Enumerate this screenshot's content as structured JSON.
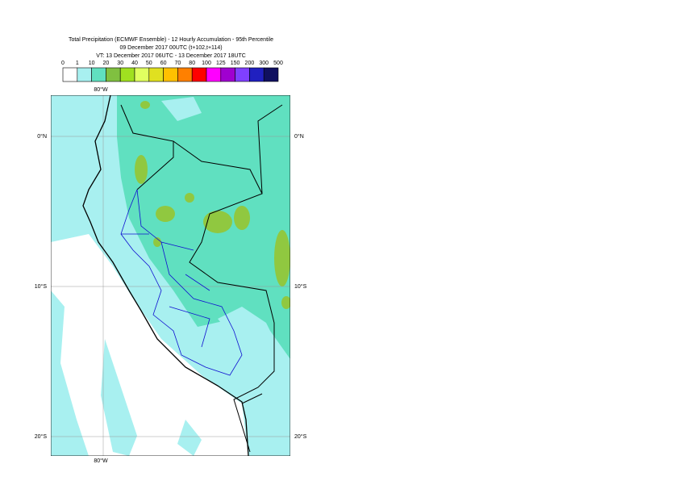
{
  "title": {
    "line1": "Total Precipitation (ECMWF Ensemble) - 12 Hourly Accumulation - 95th Percentile",
    "line2": "09 December 2017 00UTC (t+102,t+114)",
    "line3": "VT: 13 December 2017 06UTC - 13 December 2017 18UTC"
  },
  "legend": {
    "labels": [
      "0",
      "1",
      "10",
      "20",
      "30",
      "40",
      "50",
      "60",
      "70",
      "80",
      "100",
      "125",
      "150",
      "200",
      "300",
      "500"
    ],
    "colors": [
      "#ffffff",
      "#a8f0f0",
      "#60e0c0",
      "#80c040",
      "#a0e020",
      "#e0ff60",
      "#e0e020",
      "#ffc000",
      "#ff8000",
      "#ff0000",
      "#ff00ff",
      "#a000d0",
      "#8040ff",
      "#2020c0",
      "#101060"
    ]
  },
  "map": {
    "lon_labels": [
      "80°W",
      "80°W"
    ],
    "lat_labels": [
      "0°N",
      "10°S",
      "20°S"
    ]
  }
}
